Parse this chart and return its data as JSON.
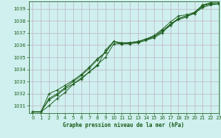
{
  "background_color": "#cff0ee",
  "grid_color": "#c0b8c8",
  "line_color": "#1a5c1a",
  "title": "Graphe pression niveau de la mer (hPa)",
  "xlim": [
    -0.5,
    23
  ],
  "ylim": [
    1030.4,
    1039.6
  ],
  "yticks": [
    1031,
    1032,
    1033,
    1034,
    1035,
    1036,
    1037,
    1038,
    1039
  ],
  "xticks": [
    0,
    1,
    2,
    3,
    4,
    5,
    6,
    7,
    8,
    9,
    10,
    11,
    12,
    13,
    14,
    15,
    16,
    17,
    18,
    19,
    20,
    21,
    22,
    23
  ],
  "series": [
    [
      1030.5,
      1030.5,
      1031.0,
      1031.6,
      1032.1,
      1032.8,
      1033.3,
      1033.8,
      1034.3,
      1035.6,
      1036.3,
      1036.1,
      1036.2,
      1036.2,
      1036.4,
      1036.6,
      1037.0,
      1037.7,
      1038.1,
      1038.3,
      1038.7,
      1039.3,
      1039.4,
      1039.4
    ],
    [
      1030.5,
      1030.5,
      1031.5,
      1031.9,
      1032.4,
      1032.8,
      1033.2,
      1033.8,
      1034.4,
      1035.0,
      1036.1,
      1036.1,
      1036.1,
      1036.2,
      1036.4,
      1036.7,
      1037.2,
      1037.7,
      1038.2,
      1038.4,
      1038.6,
      1039.1,
      1039.3,
      1039.4
    ],
    [
      1030.5,
      1030.5,
      1031.6,
      1032.0,
      1032.5,
      1033.0,
      1033.5,
      1034.1,
      1034.8,
      1035.4,
      1036.3,
      1036.1,
      1036.2,
      1036.3,
      1036.5,
      1036.7,
      1037.1,
      1037.6,
      1038.2,
      1038.4,
      1038.6,
      1039.2,
      1039.4,
      1039.4
    ],
    [
      1030.5,
      1030.5,
      1032.0,
      1032.3,
      1032.7,
      1033.1,
      1033.6,
      1034.2,
      1034.9,
      1035.4,
      1036.3,
      1036.2,
      1036.2,
      1036.3,
      1036.5,
      1036.8,
      1037.3,
      1037.9,
      1038.4,
      1038.5,
      1038.7,
      1039.3,
      1039.5,
      1039.5
    ]
  ]
}
